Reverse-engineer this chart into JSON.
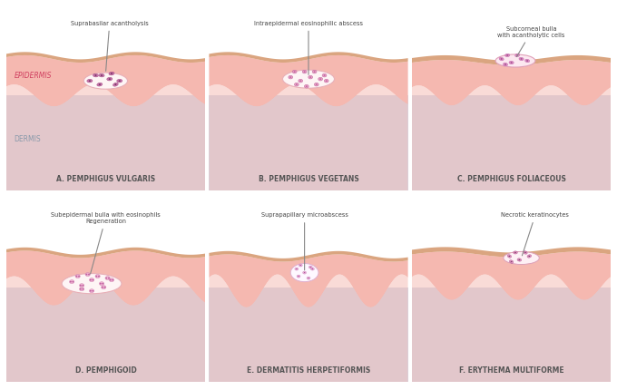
{
  "bg_color": "#ffffff",
  "panel_titles": [
    "A. PEMPHIGUS VULGARIS",
    "B. PEMPHIGUS VEGETANS",
    "C. PEMPHIGUS FOLIACEOUS",
    "D. PEMPHIGOID",
    "E. DERMATITIS HERPETIFORMIS",
    "F. ERYTHEMA MULTIFORME"
  ],
  "panel_annotations": [
    "Suprabasilar acantholysis",
    "Intraepidermal eosinophilic abscess",
    "Subcorneal bulla\nwith acantholytic cells",
    "Subepidermal bulla with eosinophils\nRegeneration",
    "Suprapapillary microabscess",
    "Necrotic keratinocytes"
  ],
  "epidermis_label": "EPIDERMIS",
  "dermis_label": "DERMIS",
  "skin_outer_color": "#e8a882",
  "skin_top_color": "#f0c0a0",
  "epidermis_color": "#f5b8b0",
  "dermis_color": "#d0d8e8",
  "blister_color": "#fce8e8",
  "blister_border": "#e8b0b0",
  "cell_color_dark": "#c060a0",
  "cell_color_light": "#e090c0",
  "title_color": "#555555",
  "annotation_color": "#444444",
  "label_color": "#d04060"
}
